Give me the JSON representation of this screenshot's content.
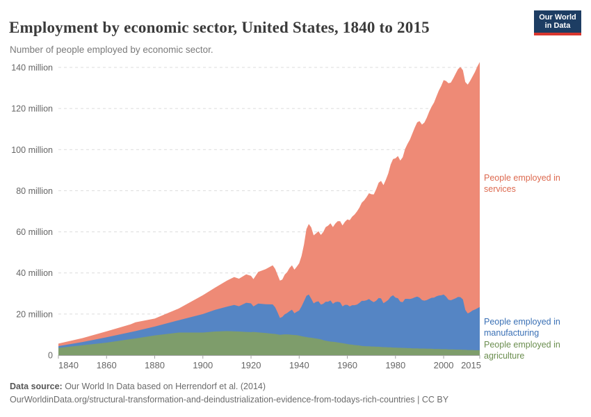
{
  "header": {
    "title": "Employment by economic sector, United States, 1840 to 2015",
    "subtitle": "Number of people employed by economic sector."
  },
  "logo": {
    "line1": "Our World",
    "line2": "in Data",
    "bg_color": "#1d3d63",
    "bar_color": "#d8362e"
  },
  "annotations": {
    "services": {
      "label": "People employed in services",
      "color": "#dd6a50"
    },
    "manufacturing": {
      "label": "People employed in manufacturing",
      "color": "#3a70b5"
    },
    "agriculture": {
      "label": "People employed in agriculture",
      "color": "#6b8e4f"
    }
  },
  "footer": {
    "source_label": "Data source:",
    "source_text": " Our World In Data based on Herrendorf et al. (2014)",
    "note": "OurWorldinData.org/structural-transformation-and-deindustrialization-evidence-from-todays-rich-countries | CC BY"
  },
  "chart_data": {
    "type": "area",
    "stacked": true,
    "title": "Employment by economic sector, United States, 1840 to 2015",
    "ylabel": "People employed",
    "unit": "million",
    "grid": "dashed",
    "legend_position": "right-inline",
    "x_axis": {
      "range": [
        1840,
        2015
      ],
      "ticks": [
        1840,
        1860,
        1880,
        1900,
        1920,
        1940,
        1960,
        1980,
        2000,
        2015
      ]
    },
    "y_axis": {
      "range": [
        0,
        140
      ],
      "ticks": [
        0,
        20,
        40,
        60,
        80,
        100,
        120,
        140
      ],
      "tick_labels": [
        "0",
        "20 million",
        "40 million",
        "60 million",
        "80 million",
        "100 million",
        "120 million",
        "140 million"
      ]
    },
    "x": [
      1840,
      1850,
      1860,
      1870,
      1872,
      1880,
      1890,
      1900,
      1905,
      1910,
      1913,
      1915,
      1918,
      1920,
      1921,
      1923,
      1926,
      1929,
      1930,
      1931,
      1932,
      1933,
      1934,
      1935,
      1936,
      1937,
      1938,
      1939,
      1940,
      1941,
      1942,
      1943,
      1944,
      1945,
      1946,
      1947,
      1948,
      1949,
      1950,
      1951,
      1952,
      1953,
      1954,
      1955,
      1956,
      1957,
      1958,
      1959,
      1960,
      1961,
      1962,
      1963,
      1964,
      1965,
      1966,
      1967,
      1968,
      1969,
      1970,
      1971,
      1972,
      1973,
      1974,
      1975,
      1976,
      1977,
      1978,
      1979,
      1980,
      1981,
      1982,
      1983,
      1984,
      1985,
      1986,
      1987,
      1988,
      1989,
      1990,
      1991,
      1992,
      1993,
      1994,
      1995,
      1996,
      1997,
      1998,
      1999,
      2000,
      2001,
      2002,
      2003,
      2004,
      2005,
      2006,
      2007,
      2008,
      2009,
      2010,
      2011,
      2012,
      2013,
      2014,
      2015
    ],
    "series": [
      {
        "name": "People employed in agriculture",
        "color": "#7e9d6b",
        "values": [
          3.5,
          4.8,
          6.1,
          7.8,
          8.1,
          9.6,
          11.0,
          11.0,
          11.5,
          11.7,
          11.6,
          11.5,
          11.3,
          11.2,
          11.3,
          11.1,
          10.8,
          10.4,
          10.3,
          10.1,
          9.9,
          10.0,
          10.1,
          10.1,
          10.0,
          9.9,
          9.8,
          9.7,
          9.5,
          9.2,
          9.0,
          8.8,
          8.6,
          8.5,
          8.3,
          8.1,
          7.9,
          7.7,
          7.3,
          7.0,
          6.8,
          6.6,
          6.5,
          6.4,
          6.2,
          6.0,
          5.8,
          5.6,
          5.4,
          5.2,
          5.1,
          4.9,
          4.8,
          4.7,
          4.5,
          4.4,
          4.3,
          4.3,
          4.2,
          4.2,
          4.1,
          4.1,
          4.0,
          3.9,
          3.9,
          3.8,
          3.8,
          3.7,
          3.7,
          3.6,
          3.6,
          3.5,
          3.5,
          3.4,
          3.4,
          3.3,
          3.3,
          3.3,
          3.2,
          3.2,
          3.2,
          3.1,
          3.1,
          3.1,
          3.0,
          3.0,
          3.0,
          2.9,
          2.9,
          2.9,
          2.8,
          2.8,
          2.8,
          2.7,
          2.7,
          2.7,
          2.6,
          2.6,
          2.5,
          2.5,
          2.5,
          2.4,
          2.4,
          2.4
        ]
      },
      {
        "name": "People employed in manufacturing",
        "color": "#5585c4",
        "values": [
          0.9,
          1.6,
          2.6,
          3.4,
          3.6,
          4.3,
          6.0,
          9.0,
          10.5,
          11.9,
          12.8,
          12.3,
          14.2,
          14.0,
          12.4,
          14.0,
          14.0,
          14.3,
          13.0,
          10.8,
          8.2,
          8.6,
          9.8,
          10.4,
          11.4,
          12.2,
          10.6,
          11.4,
          12.2,
          14.5,
          17.2,
          20.0,
          20.9,
          19.0,
          16.9,
          17.8,
          18.3,
          16.9,
          17.7,
          19.0,
          19.2,
          20.0,
          18.5,
          19.4,
          19.8,
          19.7,
          17.9,
          18.9,
          19.1,
          18.5,
          19.2,
          19.4,
          19.8,
          20.7,
          21.9,
          22.0,
          22.4,
          23.0,
          22.2,
          21.6,
          22.4,
          23.7,
          23.6,
          21.4,
          22.1,
          23.1,
          24.6,
          25.4,
          24.3,
          24.1,
          22.4,
          22.3,
          23.9,
          24.0,
          23.9,
          24.3,
          24.8,
          25.2,
          24.8,
          23.6,
          23.3,
          23.7,
          24.3,
          24.8,
          25.0,
          25.6,
          26.0,
          26.2,
          26.6,
          25.6,
          24.2,
          23.9,
          24.4,
          25.0,
          25.6,
          25.5,
          24.5,
          19.4,
          17.8,
          18.4,
          19.2,
          19.8,
          20.4,
          21.0
        ]
      },
      {
        "name": "People employed in services",
        "color": "#ee8a76",
        "values": [
          1.2,
          1.9,
          2.9,
          3.8,
          4.3,
          3.9,
          5.7,
          9.2,
          10.8,
          12.7,
          13.6,
          13.4,
          13.8,
          13.4,
          13.3,
          15.4,
          17.0,
          19.0,
          18.7,
          18.3,
          18.2,
          18.2,
          19.3,
          19.9,
          21.0,
          21.6,
          21.2,
          21.9,
          23.0,
          24.6,
          27.6,
          32.5,
          34.3,
          34.7,
          33.1,
          33.3,
          34.1,
          33.9,
          34.9,
          36.3,
          37.0,
          37.6,
          37.3,
          38.2,
          39.2,
          39.5,
          39.4,
          40.4,
          41.5,
          42.0,
          43.1,
          44.1,
          45.3,
          46.4,
          47.8,
          48.9,
          50.2,
          51.5,
          51.9,
          52.4,
          54.3,
          56.1,
          57.2,
          57.4,
          59.3,
          61.5,
          64.4,
          66.3,
          67.8,
          69.2,
          68.7,
          70.5,
          73.0,
          75.4,
          77.6,
          80.2,
          82.6,
          84.8,
          85.9,
          85.4,
          86.7,
          88.7,
          91.1,
          93.0,
          94.9,
          97.3,
          99.7,
          101.9,
          104.3,
          104.9,
          105.3,
          105.9,
          107.5,
          109.3,
          110.9,
          112.0,
          111.5,
          110.9,
          111.3,
          112.5,
          113.9,
          115.6,
          117.6,
          119.2
        ]
      }
    ]
  }
}
